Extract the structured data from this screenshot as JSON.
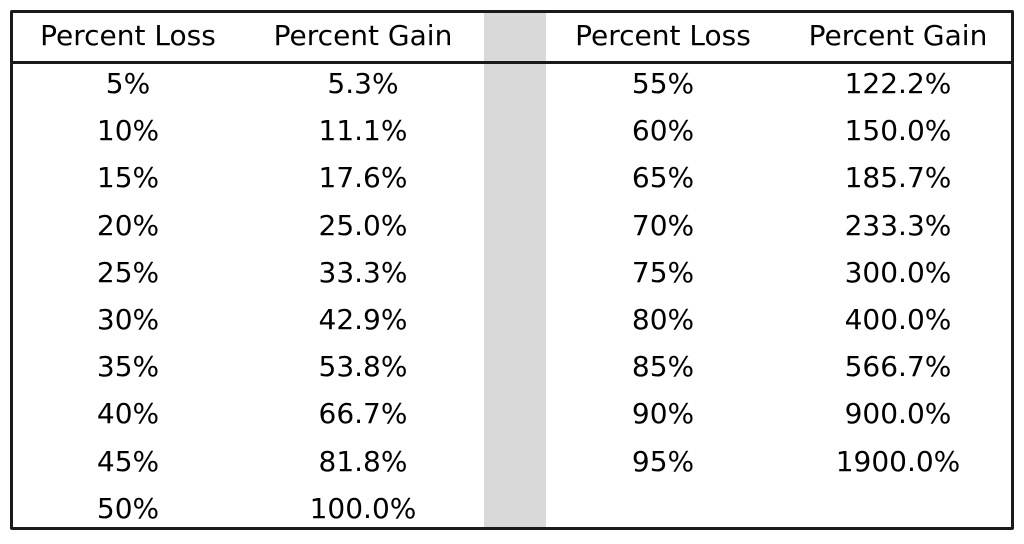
{
  "chart_data": {
    "type": "table",
    "columns": [
      "Percent Loss",
      "Percent Gain",
      "Percent Loss",
      "Percent Gain"
    ],
    "left_block": [
      {
        "loss": "5%",
        "gain": "5.3%"
      },
      {
        "loss": "10%",
        "gain": "11.1%"
      },
      {
        "loss": "15%",
        "gain": "17.6%"
      },
      {
        "loss": "20%",
        "gain": "25.0%"
      },
      {
        "loss": "25%",
        "gain": "33.3%"
      },
      {
        "loss": "30%",
        "gain": "42.9%"
      },
      {
        "loss": "35%",
        "gain": "53.8%"
      },
      {
        "loss": "40%",
        "gain": "66.7%"
      },
      {
        "loss": "45%",
        "gain": "81.8%"
      },
      {
        "loss": "50%",
        "gain": "100.0%"
      }
    ],
    "right_block": [
      {
        "loss": "55%",
        "gain": "122.2%"
      },
      {
        "loss": "60%",
        "gain": "150.0%"
      },
      {
        "loss": "65%",
        "gain": "185.7%"
      },
      {
        "loss": "70%",
        "gain": "233.3%"
      },
      {
        "loss": "75%",
        "gain": "300.0%"
      },
      {
        "loss": "80%",
        "gain": "400.0%"
      },
      {
        "loss": "85%",
        "gain": "566.7%"
      },
      {
        "loss": "90%",
        "gain": "900.0%"
      },
      {
        "loss": "95%",
        "gain": "1900.0%"
      }
    ]
  },
  "colors": {
    "separator_column": "#d9d9d9",
    "border": "#1a1a1a"
  }
}
